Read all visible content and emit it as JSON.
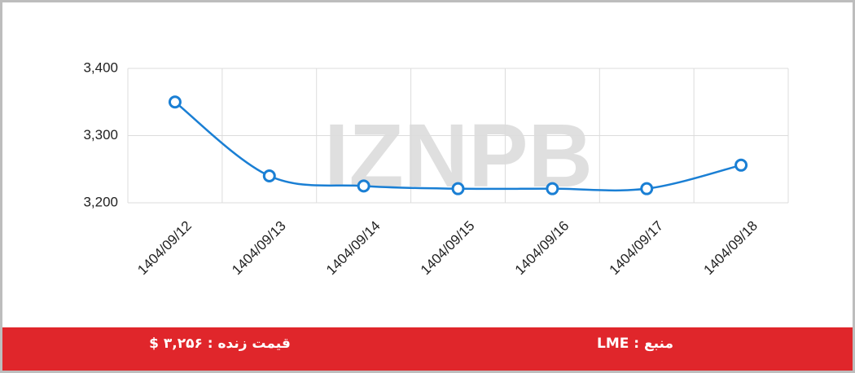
{
  "chart_data": {
    "type": "line",
    "categories": [
      "1404/09/12",
      "1404/09/13",
      "1404/09/14",
      "1404/09/15",
      "1404/09/16",
      "1404/09/17",
      "1404/09/18"
    ],
    "series": [
      {
        "color": "#1a7fd4",
        "values": [
          3350,
          3240,
          3225,
          3221,
          3221,
          3221,
          3256
        ]
      }
    ],
    "ylim": [
      3200,
      3400
    ],
    "yticks": [
      {
        "value": 3200,
        "label": "3,200"
      },
      {
        "value": 3300,
        "label": "3,300"
      },
      {
        "value": 3400,
        "label": "3,400"
      }
    ],
    "grid": true
  },
  "watermark": "IZNPB",
  "footer": {
    "price": "قیمت زنده : ۳,۲۵۶ $",
    "source": "منبع : LME"
  }
}
